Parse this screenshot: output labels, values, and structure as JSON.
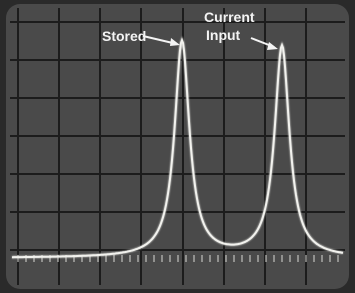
{
  "annotations": {
    "stored": "Stored",
    "current_line1": "Current",
    "current_line2": "Input"
  }
}
